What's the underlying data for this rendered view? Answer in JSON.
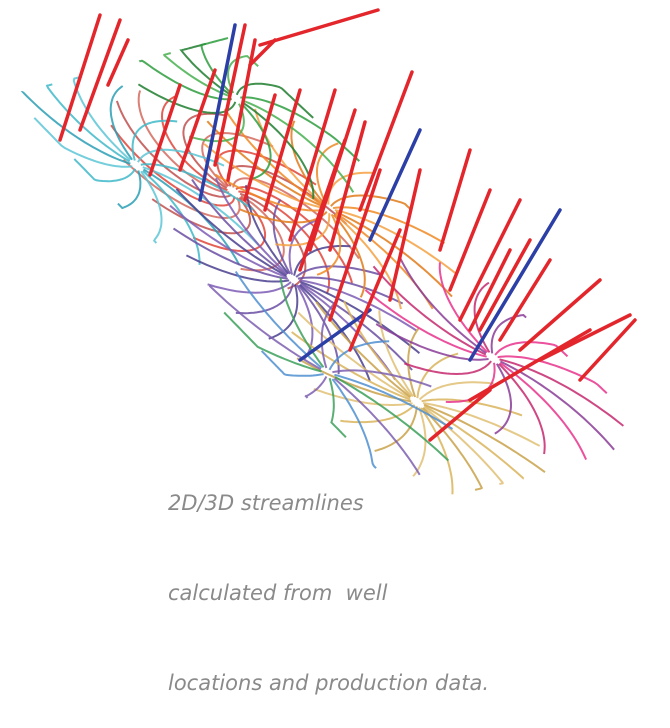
{
  "caption": {
    "lines": [
      "2D/3D streamlines",
      "calculated from  well",
      "locations and production data."
    ]
  }
}
